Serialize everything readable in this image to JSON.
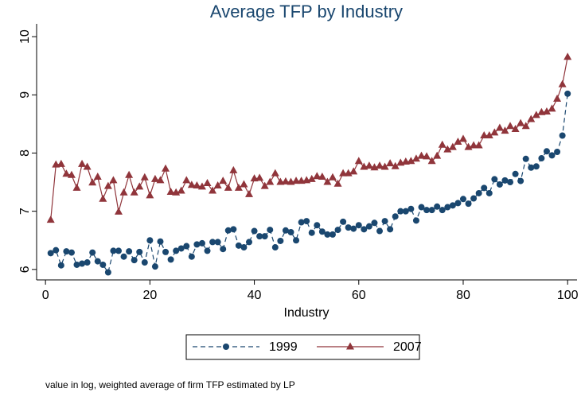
{
  "chart_data": {
    "type": "line",
    "title": "Average TFP by Industry",
    "x_label": "Industry",
    "note": "value in log, weighted average of firm TFP estimated by LP",
    "xlim": [
      -1.7,
      101.8
    ],
    "ylim": [
      5.82,
      10.22
    ],
    "xticks": [
      0,
      20,
      40,
      60,
      80,
      100
    ],
    "yticks": [
      6,
      7,
      8,
      9,
      10
    ],
    "x": [
      1,
      2,
      3,
      4,
      5,
      6,
      7,
      8,
      9,
      10,
      11,
      12,
      13,
      14,
      15,
      16,
      17,
      18,
      19,
      20,
      21,
      22,
      23,
      24,
      25,
      26,
      27,
      28,
      29,
      30,
      31,
      32,
      33,
      34,
      35,
      36,
      37,
      38,
      39,
      40,
      41,
      42,
      43,
      44,
      45,
      46,
      47,
      48,
      49,
      50,
      51,
      52,
      53,
      54,
      55,
      56,
      57,
      58,
      59,
      60,
      61,
      62,
      63,
      64,
      65,
      66,
      67,
      68,
      69,
      70,
      71,
      72,
      73,
      74,
      75,
      76,
      77,
      78,
      79,
      80,
      81,
      82,
      83,
      84,
      85,
      86,
      87,
      88,
      89,
      90,
      91,
      92,
      93,
      94,
      95,
      96,
      97,
      98,
      99,
      100
    ],
    "series": [
      {
        "name": "1999",
        "color": "#1a476f",
        "dash": true,
        "marker": "circle",
        "values": [
          6.28,
          6.33,
          6.07,
          6.31,
          6.29,
          6.08,
          6.1,
          6.12,
          6.29,
          6.14,
          6.08,
          5.95,
          6.32,
          6.32,
          6.22,
          6.31,
          6.16,
          6.3,
          6.12,
          6.5,
          6.05,
          6.48,
          6.3,
          6.17,
          6.32,
          6.36,
          6.4,
          6.22,
          6.43,
          6.45,
          6.32,
          6.47,
          6.47,
          6.35,
          6.67,
          6.69,
          6.41,
          6.38,
          6.47,
          6.66,
          6.57,
          6.57,
          6.68,
          6.38,
          6.49,
          6.67,
          6.64,
          6.5,
          6.81,
          6.83,
          6.63,
          6.76,
          6.65,
          6.6,
          6.6,
          6.68,
          6.82,
          6.72,
          6.7,
          6.76,
          6.69,
          6.74,
          6.8,
          6.66,
          6.83,
          6.69,
          6.91,
          7.0,
          7.0,
          7.04,
          6.84,
          7.07,
          7.02,
          7.02,
          7.08,
          7.02,
          7.07,
          7.1,
          7.14,
          7.21,
          7.13,
          7.22,
          7.31,
          7.4,
          7.31,
          7.55,
          7.46,
          7.53,
          7.5,
          7.64,
          7.52,
          7.9,
          7.75,
          7.77,
          7.91,
          8.03,
          7.96,
          8.02,
          8.3,
          9.02
        ]
      },
      {
        "name": "2007",
        "color": "#90353b",
        "dash": false,
        "marker": "triangle",
        "values": [
          6.85,
          7.8,
          7.81,
          7.64,
          7.62,
          7.4,
          7.81,
          7.76,
          7.49,
          7.59,
          7.21,
          7.43,
          7.53,
          6.99,
          7.32,
          7.62,
          7.32,
          7.42,
          7.58,
          7.27,
          7.55,
          7.53,
          7.73,
          7.33,
          7.32,
          7.35,
          7.53,
          7.45,
          7.44,
          7.42,
          7.48,
          7.35,
          7.44,
          7.52,
          7.4,
          7.7,
          7.4,
          7.46,
          7.29,
          7.56,
          7.57,
          7.43,
          7.5,
          7.65,
          7.5,
          7.51,
          7.5,
          7.52,
          7.52,
          7.53,
          7.55,
          7.6,
          7.59,
          7.5,
          7.58,
          7.47,
          7.65,
          7.65,
          7.68,
          7.86,
          7.76,
          7.78,
          7.75,
          7.78,
          7.76,
          7.82,
          7.77,
          7.83,
          7.85,
          7.86,
          7.9,
          7.95,
          7.94,
          7.86,
          7.95,
          8.14,
          8.06,
          8.1,
          8.19,
          8.24,
          8.1,
          8.13,
          8.13,
          8.3,
          8.3,
          8.35,
          8.43,
          8.38,
          8.46,
          8.41,
          8.51,
          8.46,
          8.58,
          8.65,
          8.7,
          8.71,
          8.76,
          8.93,
          9.18,
          9.65
        ]
      }
    ]
  }
}
